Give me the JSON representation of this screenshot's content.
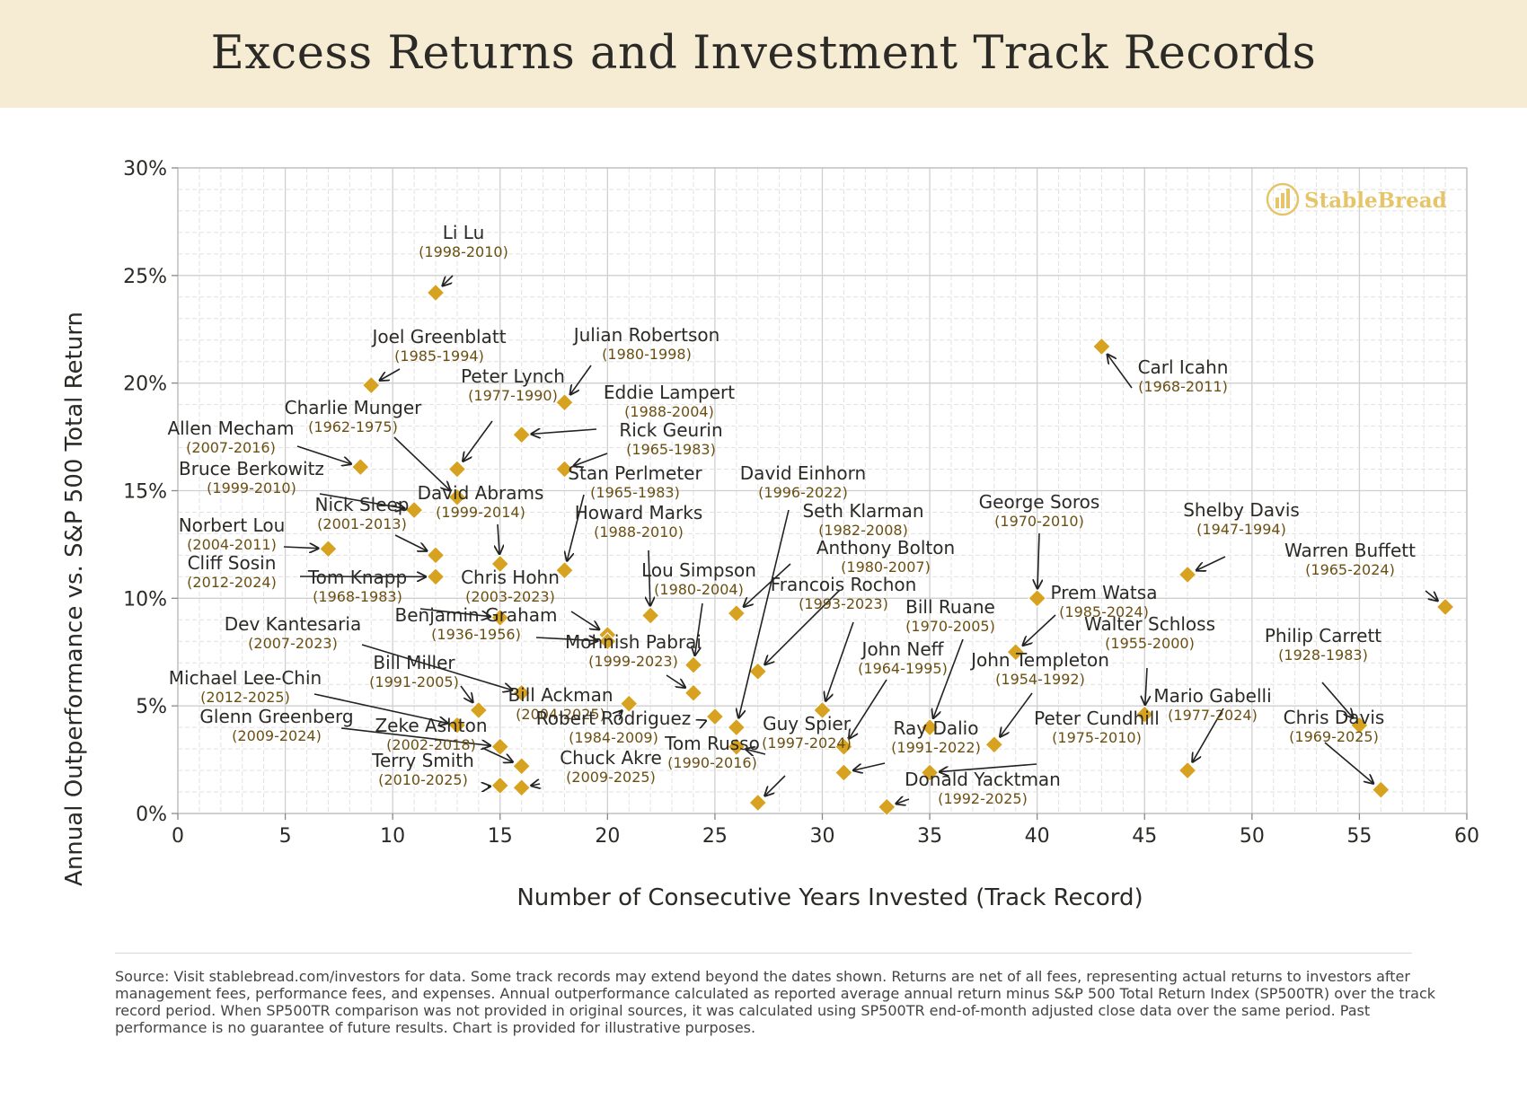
{
  "header": {
    "title": "Excess Returns and Investment Track Records"
  },
  "watermark": {
    "text": "StableBread"
  },
  "colors": {
    "marker": "#d7a21f",
    "banner": "#f6ecd3",
    "grid": "#d6d6d6",
    "label_years": "#6b4f12",
    "text": "#2c2a26"
  },
  "chart_data": {
    "type": "scatter",
    "xlabel": "Number of Consecutive Years Invested (Track Record)",
    "ylabel": "Annual Outperformance vs. S&P 500 Total Return",
    "xlim": [
      0,
      60
    ],
    "ylim": [
      0,
      30
    ],
    "xticks": [
      0,
      5,
      10,
      15,
      20,
      25,
      30,
      35,
      40,
      45,
      50,
      55,
      60
    ],
    "yticks": [
      0,
      5,
      10,
      15,
      20,
      25,
      30
    ],
    "ytick_labels": [
      "0%",
      "5%",
      "10%",
      "15%",
      "20%",
      "25%",
      "30%"
    ],
    "grid": true,
    "marker": "diamond",
    "points": [
      {
        "name": "Li Lu",
        "years": "(1998-2010)",
        "x": 12,
        "y": 24.2
      },
      {
        "name": "Joel Greenblatt",
        "years": "(1985-1994)",
        "x": 9,
        "y": 19.9
      },
      {
        "name": "Julian Robertson",
        "years": "(1980-1998)",
        "x": 18,
        "y": 19.1
      },
      {
        "name": "Peter Lynch",
        "years": "(1977-1990)",
        "x": 13,
        "y": 16.0
      },
      {
        "name": "Eddie Lampert",
        "years": "(1988-2004)",
        "x": 16,
        "y": 17.6
      },
      {
        "name": "Charlie Munger",
        "years": "(1962-1975)",
        "x": 13,
        "y": 14.7
      },
      {
        "name": "Allen Mecham",
        "years": "(2007-2016)",
        "x": 8.5,
        "y": 16.1
      },
      {
        "name": "Rick Geurin",
        "years": "(1965-1983)",
        "x": 18,
        "y": 16.0
      },
      {
        "name": "Bruce Berkowitz",
        "years": "(1999-2010)",
        "x": 11,
        "y": 14.1
      },
      {
        "name": "Stan Perlmeter",
        "years": "(1965-1983)",
        "x": 18,
        "y": 11.3
      },
      {
        "name": "David Einhorn",
        "years": "(1996-2022)",
        "x": 26,
        "y": 4.0
      },
      {
        "name": "David Abrams",
        "years": "(1999-2014)",
        "x": 15,
        "y": 11.6
      },
      {
        "name": "Nick Sleep",
        "years": "(2001-2013)",
        "x": 12,
        "y": 12.0
      },
      {
        "name": "Norbert Lou",
        "years": "(2004-2011)",
        "x": 7,
        "y": 12.3
      },
      {
        "name": "Cliff Sosin",
        "years": "(2012-2024)",
        "x": 12,
        "y": 11.0
      },
      {
        "name": "Howard Marks",
        "years": "(1988-2010)",
        "x": 22,
        "y": 9.2
      },
      {
        "name": "Seth Klarman",
        "years": "(1982-2008)",
        "x": 26,
        "y": 9.3
      },
      {
        "name": "George Soros",
        "years": "(1970-2010)",
        "x": 40,
        "y": 10.0
      },
      {
        "name": "Shelby Davis",
        "years": "(1947-1994)",
        "x": 47,
        "y": 11.1
      },
      {
        "name": "Carl Icahn",
        "years": "(1968-2011)",
        "x": 43,
        "y": 21.7
      },
      {
        "name": "Warren Buffett",
        "years": "(1965-2024)",
        "x": 59,
        "y": 9.6
      },
      {
        "name": "Tom Knapp",
        "years": "(1968-1983)",
        "x": 15,
        "y": 9.1
      },
      {
        "name": "Chris Hohn",
        "years": "(2003-2023)",
        "x": 20,
        "y": 8.3
      },
      {
        "name": "Lou Simpson",
        "years": "(1980-2004)",
        "x": 24,
        "y": 6.9
      },
      {
        "name": "Anthony Bolton",
        "years": "(1980-2007)",
        "x": 27,
        "y": 6.6
      },
      {
        "name": "Francois Rochon",
        "years": "(1993-2023)",
        "x": 30,
        "y": 4.8
      },
      {
        "name": "Prem Watsa",
        "years": "(1985-2024)",
        "x": 39,
        "y": 7.5
      },
      {
        "name": "Bill Ruane",
        "years": "(1970-2005)",
        "x": 35,
        "y": 4.0
      },
      {
        "name": "Dev Kantesaria",
        "years": "(2007-2023)",
        "x": 16,
        "y": 5.6
      },
      {
        "name": "Benjamin Graham",
        "years": "(1936-1956)",
        "x": 20,
        "y": 8.0
      },
      {
        "name": "Mohnish Pabrai",
        "years": "(1999-2023)",
        "x": 24,
        "y": 5.6
      },
      {
        "name": "Walter Schloss",
        "years": "(1955-2000)",
        "x": 45,
        "y": 4.6
      },
      {
        "name": "Philip Carrett",
        "years": "(1928-1983)",
        "x": 55,
        "y": 4.1
      },
      {
        "name": "Michael Lee-Chin",
        "years": "(2012-2025)",
        "x": 13,
        "y": 4.1
      },
      {
        "name": "Bill Miller",
        "years": "(1991-2005)",
        "x": 14,
        "y": 4.8
      },
      {
        "name": "Bill Ackman",
        "years": "(2004-2025)",
        "x": 21,
        "y": 5.1
      },
      {
        "name": "John Neff",
        "years": "(1964-1995)",
        "x": 31,
        "y": 3.1
      },
      {
        "name": "John Templeton",
        "years": "(1954-1992)",
        "x": 38,
        "y": 3.2
      },
      {
        "name": "Mario Gabelli",
        "years": "(1977-2024)",
        "x": 47,
        "y": 2.0
      },
      {
        "name": "Glenn Greenberg",
        "years": "(2009-2024)",
        "x": 15,
        "y": 3.1
      },
      {
        "name": "Robert Rodriguez",
        "years": "(1984-2009)",
        "x": 25,
        "y": 4.5
      },
      {
        "name": "Guy Spier",
        "years": "(1997-2024)",
        "x": 26,
        "y": 3.1
      },
      {
        "name": "Ray Dalio",
        "years": "(1991-2022)",
        "x": 31,
        "y": 1.9
      },
      {
        "name": "Peter Cundhill",
        "years": "(1975-2010)",
        "x": 35,
        "y": 1.9
      },
      {
        "name": "Chris Davis",
        "years": "(1969-2025)",
        "x": 56,
        "y": 1.1
      },
      {
        "name": "Zeke Ashton",
        "years": "(2002-2018)",
        "x": 16,
        "y": 2.2
      },
      {
        "name": "Tom Russo",
        "years": "(1990-2016)",
        "x": 27,
        "y": 0.5
      },
      {
        "name": "Terry Smith",
        "years": "(2010-2025)",
        "x": 15,
        "y": 1.3
      },
      {
        "name": "Chuck Akre",
        "years": "(2009-2025)",
        "x": 16,
        "y": 1.2
      },
      {
        "name": "Donald Yacktman",
        "years": "(1992-2025)",
        "x": 33,
        "y": 0.3
      }
    ]
  },
  "footer": {
    "source_label": "Source:",
    "source_text": " Visit stablebread.com/investors for data. Some track records may extend beyond the dates shown. Returns are net of all fees, representing actual returns to investors after management fees, performance fees, and expenses. Annual outperformance calculated as reported average annual return minus S&P 500 Total Return Index (SP500TR) over the track record period. When SP500TR comparison was not provided in original sources, it was calculated using SP500TR end-of-month adjusted close data over the same period. Past performance is no guarantee of future results. Chart is provided for illustrative purposes."
  }
}
